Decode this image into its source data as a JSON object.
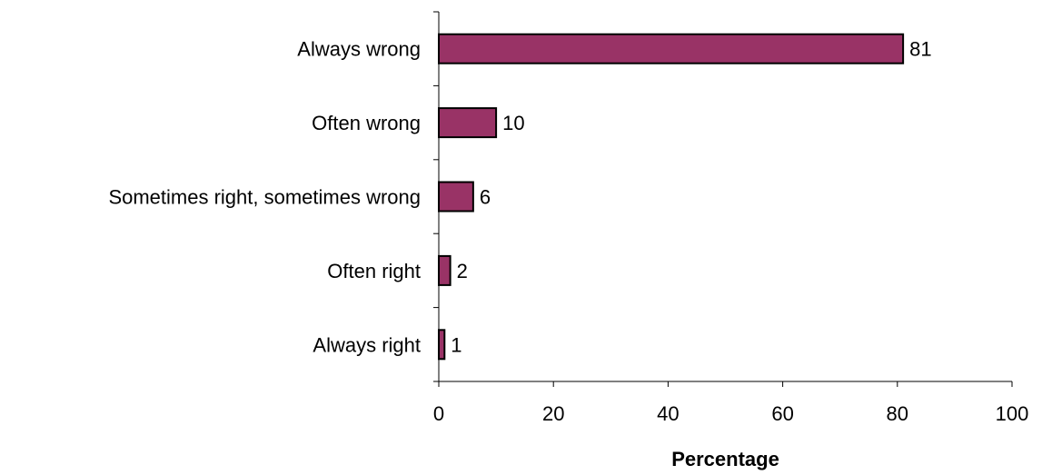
{
  "chart_data": {
    "type": "bar",
    "orientation": "horizontal",
    "categories": [
      "Always wrong",
      "Often wrong",
      "Sometimes right, sometimes wrong",
      "Often right",
      "Always right"
    ],
    "values": [
      81,
      10,
      6,
      2,
      1
    ],
    "data_labels": [
      "81",
      "10",
      "6",
      "2",
      "1"
    ],
    "xlabel": "Percentage",
    "ylabel": "",
    "xlim": [
      0,
      100
    ],
    "xticks": [
      0,
      20,
      40,
      60,
      80,
      100
    ],
    "grid": false,
    "bar_color": "#993366",
    "bar_edge_color": "#000000"
  }
}
